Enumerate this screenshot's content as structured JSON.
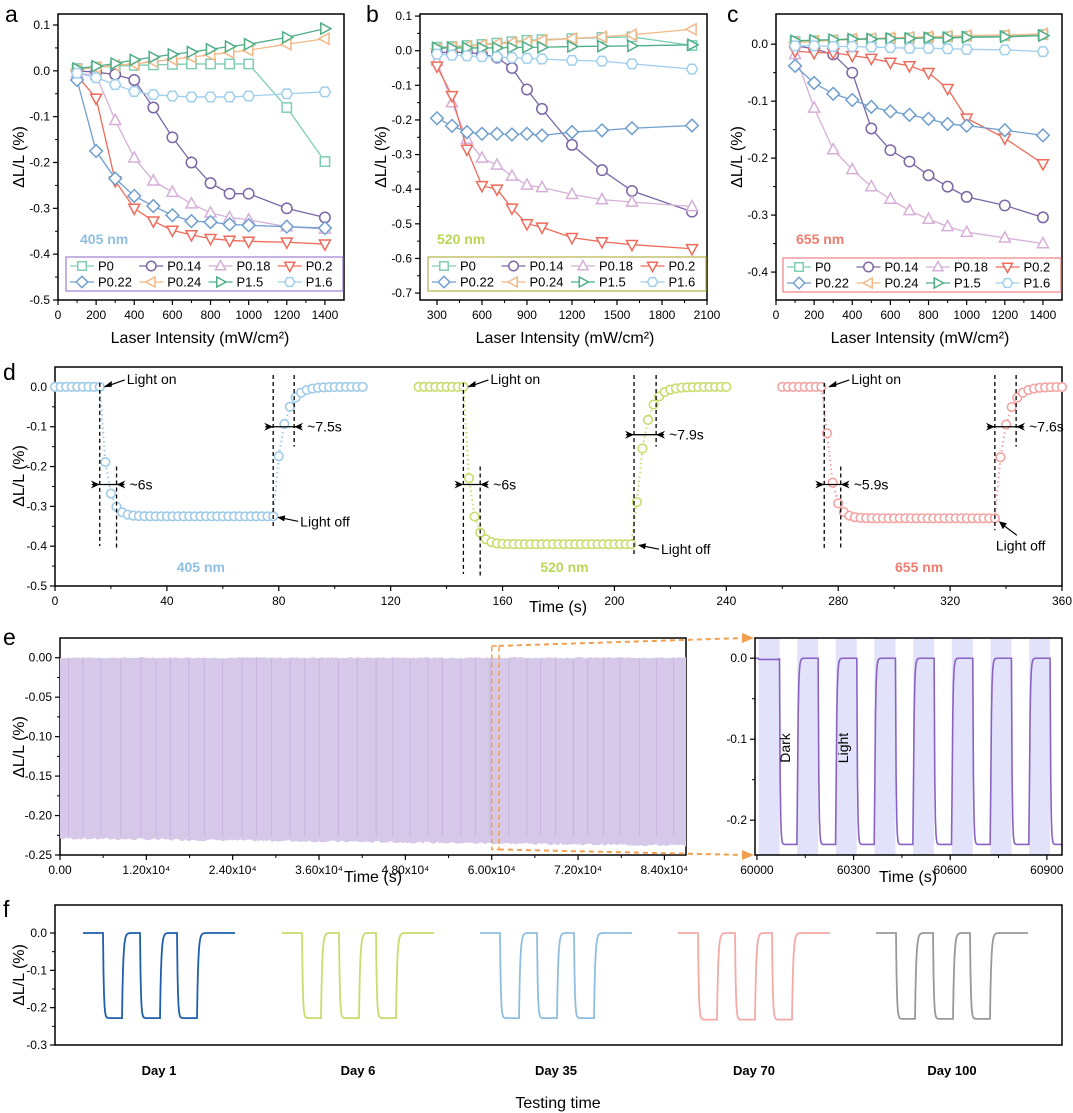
{
  "panel_labels": [
    "a",
    "b",
    "c",
    "d",
    "e",
    "f"
  ],
  "series_styles": [
    {
      "name": "P0",
      "color": "#7fcdb5",
      "marker": "square"
    },
    {
      "name": "P0.14",
      "color": "#7b66a6",
      "marker": "circle"
    },
    {
      "name": "P0.18",
      "color": "#d6afd8",
      "marker": "triangle-up"
    },
    {
      "name": "P0.2",
      "color": "#ef6b5b",
      "marker": "triangle-down"
    },
    {
      "name": "P0.22",
      "color": "#6f9fcf",
      "marker": "diamond"
    },
    {
      "name": "P0.24",
      "color": "#f2b885",
      "marker": "triangle-left"
    },
    {
      "name": "P1.5",
      "color": "#4fae86",
      "marker": "triangle-right"
    },
    {
      "name": "P1.6",
      "color": "#9fcfec",
      "marker": "hexagon"
    }
  ],
  "chart_data": [
    {
      "panel": "a",
      "type": "line",
      "annotation": "405 nm",
      "annotation_color": "#8fbfe0",
      "legend_border": "#a07fd0",
      "xlabel": "Laser Intensity (mW/cm²)",
      "ylabel": "ΔL/L (%)",
      "xlim": [
        0,
        1500
      ],
      "ylim": [
        -0.5,
        0.124
      ],
      "xticks": [
        0,
        200,
        400,
        600,
        800,
        1000,
        1200,
        1400
      ],
      "yticks": [
        -0.5,
        -0.4,
        -0.3,
        -0.2,
        -0.1,
        0.0,
        0.1
      ],
      "ytick_labels": [
        "-0.5",
        "-0.4",
        "-0.3",
        "-0.2",
        "-0.1",
        "0.0",
        "0.1"
      ],
      "legend": "bottom (inside)",
      "x": [
        100,
        200,
        300,
        400,
        500,
        600,
        700,
        800,
        900,
        1000,
        1200,
        1400
      ],
      "series": [
        {
          "name": "P0",
          "values": [
            0.005,
            0.008,
            0.01,
            0.012,
            0.013,
            0.014,
            0.015,
            0.015,
            0.015,
            0.015,
            -0.08,
            -0.198
          ]
        },
        {
          "name": "P0.14",
          "values": [
            0,
            -0.003,
            -0.008,
            -0.02,
            -0.08,
            -0.145,
            -0.2,
            -0.245,
            -0.268,
            -0.268,
            -0.3,
            -0.32
          ]
        },
        {
          "name": "P0.18",
          "values": [
            -0.005,
            -0.01,
            -0.108,
            -0.19,
            -0.24,
            -0.265,
            -0.29,
            -0.31,
            -0.32,
            -0.325,
            -0.34,
            -0.345
          ]
        },
        {
          "name": "P0.2",
          "values": [
            -0.01,
            -0.06,
            -0.24,
            -0.3,
            -0.328,
            -0.348,
            -0.358,
            -0.366,
            -0.37,
            -0.372,
            -0.374,
            -0.378
          ]
        },
        {
          "name": "P0.22",
          "values": [
            -0.02,
            -0.175,
            -0.235,
            -0.273,
            -0.295,
            -0.315,
            -0.328,
            -0.33,
            -0.335,
            -0.337,
            -0.34,
            -0.343
          ]
        },
        {
          "name": "P0.24",
          "values": [
            0.003,
            0.007,
            0.012,
            0.015,
            0.02,
            0.025,
            0.03,
            0.035,
            0.04,
            0.045,
            0.058,
            0.07
          ]
        },
        {
          "name": "P1.5",
          "values": [
            0.005,
            0.01,
            0.016,
            0.024,
            0.03,
            0.036,
            0.041,
            0.047,
            0.053,
            0.058,
            0.073,
            0.092
          ]
        },
        {
          "name": "P1.6",
          "values": [
            -0.005,
            -0.015,
            -0.03,
            -0.045,
            -0.052,
            -0.055,
            -0.057,
            -0.057,
            -0.057,
            -0.055,
            -0.05,
            -0.046
          ]
        }
      ]
    },
    {
      "panel": "b",
      "type": "line",
      "annotation": "520 nm",
      "annotation_color": "#b8d656",
      "legend_border": "#b5b04a",
      "xlabel": "Laser Intensity (mW/cm²)",
      "ylabel": "ΔL/L (%)",
      "xlim": [
        187,
        2100
      ],
      "ylim": [
        -0.72,
        0.106
      ],
      "xticks": [
        300,
        600,
        900,
        1200,
        1500,
        1800,
        2100
      ],
      "yticks": [
        -0.7,
        -0.6,
        -0.5,
        -0.4,
        -0.3,
        -0.2,
        -0.1,
        0.0,
        0.1
      ],
      "ytick_labels": [
        "-0.7",
        "-0.6",
        "-0.5",
        "-0.4",
        "-0.3",
        "-0.2",
        "-0.1",
        "0.0",
        "0.1"
      ],
      "legend": "bottom (inside)",
      "x": [
        300,
        400,
        500,
        600,
        700,
        800,
        900,
        1000,
        1200,
        1400,
        1600,
        2000
      ],
      "series": [
        {
          "name": "P0",
          "values": [
            0.01,
            0.012,
            0.015,
            0.018,
            0.022,
            0.026,
            0.03,
            0.032,
            0.035,
            0.038,
            0.04,
            0.015
          ]
        },
        {
          "name": "P0.14",
          "values": [
            -0.005,
            -0.005,
            -0.005,
            -0.01,
            -0.02,
            -0.05,
            -0.112,
            -0.168,
            -0.272,
            -0.345,
            -0.405,
            -0.465
          ]
        },
        {
          "name": "P0.18",
          "values": [
            -0.03,
            -0.15,
            -0.255,
            -0.31,
            -0.33,
            -0.362,
            -0.388,
            -0.395,
            -0.415,
            -0.43,
            -0.437,
            -0.45
          ]
        },
        {
          "name": "P0.2",
          "values": [
            -0.045,
            -0.13,
            -0.285,
            -0.39,
            -0.4,
            -0.455,
            -0.5,
            -0.51,
            -0.54,
            -0.552,
            -0.56,
            -0.572
          ]
        },
        {
          "name": "P0.22",
          "values": [
            -0.195,
            -0.217,
            -0.235,
            -0.24,
            -0.24,
            -0.242,
            -0.24,
            -0.245,
            -0.235,
            -0.23,
            -0.224,
            -0.216
          ]
        },
        {
          "name": "P0.24",
          "values": [
            0.005,
            0.01,
            0.013,
            0.016,
            0.02,
            0.023,
            0.027,
            0.03,
            0.035,
            0.04,
            0.046,
            0.062
          ]
        },
        {
          "name": "P1.5",
          "values": [
            0.008,
            0.008,
            0.008,
            0.008,
            0.008,
            0.009,
            0.01,
            0.01,
            0.012,
            0.013,
            0.014,
            0.017
          ]
        },
        {
          "name": "P1.6",
          "values": [
            -0.01,
            -0.013,
            -0.015,
            -0.017,
            -0.018,
            -0.02,
            -0.022,
            -0.024,
            -0.028,
            -0.03,
            -0.038,
            -0.053
          ]
        }
      ]
    },
    {
      "panel": "c",
      "type": "line",
      "annotation": "655 nm",
      "annotation_color": "#f07b6f",
      "legend_border": "#f08080",
      "xlabel": "Laser Intensity (mW/cm²)",
      "ylabel": "ΔL/L (%)",
      "xlim": [
        0,
        1500
      ],
      "ylim": [
        -0.449,
        0.053
      ],
      "xticks": [
        0,
        200,
        400,
        600,
        800,
        1000,
        1200,
        1400
      ],
      "yticks": [
        -0.4,
        -0.3,
        -0.2,
        -0.1,
        0.0
      ],
      "ytick_labels": [
        "-0.4",
        "-0.3",
        "-0.2",
        "-0.1",
        "0.0"
      ],
      "legend": "bottom (inside)",
      "x": [
        100,
        200,
        300,
        400,
        500,
        600,
        700,
        800,
        900,
        1000,
        1200,
        1400
      ],
      "series": [
        {
          "name": "P0",
          "values": [
            0.005,
            0.006,
            0.007,
            0.008,
            0.009,
            0.01,
            0.011,
            0.012,
            0.013,
            0.014,
            0.015,
            0.017
          ]
        },
        {
          "name": "P0.14",
          "values": [
            -0.003,
            -0.008,
            -0.018,
            -0.05,
            -0.148,
            -0.186,
            -0.206,
            -0.23,
            -0.25,
            -0.268,
            -0.283,
            -0.304
          ]
        },
        {
          "name": "P0.18",
          "values": [
            -0.018,
            -0.112,
            -0.185,
            -0.22,
            -0.25,
            -0.272,
            -0.292,
            -0.307,
            -0.32,
            -0.33,
            -0.34,
            -0.35
          ]
        },
        {
          "name": "P0.2",
          "values": [
            -0.012,
            -0.015,
            -0.015,
            -0.02,
            -0.025,
            -0.032,
            -0.038,
            -0.05,
            -0.078,
            -0.13,
            -0.165,
            -0.21
          ]
        },
        {
          "name": "P0.22",
          "values": [
            -0.038,
            -0.068,
            -0.087,
            -0.098,
            -0.11,
            -0.118,
            -0.124,
            -0.131,
            -0.14,
            -0.143,
            -0.151,
            -0.16
          ]
        },
        {
          "name": "P0.24",
          "values": [
            0.003,
            0.005,
            0.007,
            0.009,
            0.01,
            0.011,
            0.012,
            0.013,
            0.014,
            0.015,
            0.016,
            0.018
          ]
        },
        {
          "name": "P1.5",
          "values": [
            0.006,
            0.007,
            0.008,
            0.009,
            0.009,
            0.01,
            0.01,
            0.011,
            0.011,
            0.012,
            0.013,
            0.015
          ]
        },
        {
          "name": "P1.6",
          "values": [
            -0.003,
            -0.003,
            -0.004,
            -0.004,
            -0.005,
            -0.006,
            -0.007,
            -0.007,
            -0.008,
            -0.009,
            -0.01,
            -0.013
          ]
        }
      ]
    },
    {
      "panel": "d",
      "type": "scatter",
      "xlabel": "Time (s)",
      "ylabel": "ΔL/L (%)",
      "xlim": [
        0,
        360
      ],
      "ylim": [
        -0.5,
        0.05
      ],
      "xticks": [
        0,
        40,
        80,
        120,
        160,
        200,
        240,
        280,
        320,
        360
      ],
      "yticks": [
        -0.5,
        -0.4,
        -0.3,
        -0.2,
        -0.1,
        0.0
      ],
      "ytick_labels": [
        "-0.5",
        "-0.4",
        "-0.3",
        "-0.2",
        "-0.1",
        "0.0"
      ],
      "light_on_label": "Light on",
      "light_off_label": "Light off",
      "traces": [
        {
          "label": "405 nm",
          "color": "#9fcbe8",
          "label_color": "#8fbfe0",
          "start": 0,
          "end": 110,
          "light_on": 16,
          "light_off": 78,
          "level": -0.325,
          "rise_label": "~6s",
          "rise": 6,
          "recovery_label": "~7.5s",
          "recovery": 7.5
        },
        {
          "label": "520 nm",
          "color": "#c9dc6e",
          "label_color": "#b8d656",
          "start": 130,
          "end": 240,
          "light_on": 146,
          "light_off": 207,
          "level": -0.395,
          "rise_label": "~6s",
          "rise": 6,
          "recovery_label": "~7.9s",
          "recovery": 7.9
        },
        {
          "label": "655 nm",
          "color": "#f4a3a3",
          "label_color": "#f07b6f",
          "start": 260,
          "end": 360,
          "light_on": 275,
          "light_off": 336,
          "level": -0.33,
          "rise_label": "~5.9s",
          "rise": 5.9,
          "recovery_label": "~7.6s",
          "recovery": 7.6
        }
      ]
    },
    {
      "panel": "e-left",
      "type": "area",
      "xlabel": "Time (s)",
      "ylabel": "ΔL/L (%)",
      "xlim": [
        0,
        87000
      ],
      "ylim": [
        -0.25,
        0.025
      ],
      "xticks": [
        0,
        12000,
        24000,
        36000,
        48000,
        60000,
        72000,
        84000
      ],
      "xtick_labels": [
        "0.00",
        "1.20x10⁴",
        "2.40x10⁴",
        "3.60x10⁴",
        "4.80x10⁴",
        "6.00x10⁴",
        "7.20x10⁴",
        "8.40x10⁴"
      ],
      "yticks": [
        -0.25,
        -0.2,
        -0.15,
        -0.1,
        -0.05,
        0.0
      ],
      "ytick_labels": [
        "-0.25",
        "-0.20",
        "-0.15",
        "-0.10",
        "-0.05",
        "0.00"
      ],
      "color": "#d6c8e8",
      "upper": 0.0,
      "lower_start": -0.229,
      "lower_end": -0.238,
      "zoom_region": [
        60000,
        61000
      ],
      "zoom_color": "#f0a050"
    },
    {
      "panel": "e-right",
      "type": "line",
      "xlabel": "Time (s)",
      "xlim": [
        59994,
        60947
      ],
      "ylim": [
        -0.243,
        0.025
      ],
      "xticks": [
        60000,
        60300,
        60600,
        60900
      ],
      "yticks": [
        -0.2,
        -0.1,
        0.0
      ],
      "ytick_labels": [
        "-0.2",
        "-0.1",
        "0.0"
      ],
      "color": "#8a62c4",
      "band_color": "#e2e2fb",
      "period": 120,
      "cycles": 8,
      "low": -0.23,
      "dark_label": "Dark",
      "light_label": "Light"
    },
    {
      "panel": "f",
      "type": "line",
      "xlabel": "Testing time",
      "ylabel": "ΔL/L (%)",
      "ylim": [
        -0.3,
        0.075
      ],
      "yticks": [
        -0.3,
        -0.2,
        -0.1,
        0.0
      ],
      "ytick_labels": [
        "-0.3",
        "-0.2",
        "-0.1",
        "0.0"
      ],
      "groups": [
        {
          "label": "Day 1",
          "color": "#1f5fad",
          "low": -0.228
        },
        {
          "label": "Day 6",
          "color": "#c9dc6e",
          "low": -0.228
        },
        {
          "label": "Day 35",
          "color": "#8fbfe0",
          "low": -0.228
        },
        {
          "label": "Day 70",
          "color": "#f4aaa6",
          "low": -0.232
        },
        {
          "label": "Day 100",
          "color": "#999999",
          "low": -0.23
        }
      ]
    }
  ]
}
